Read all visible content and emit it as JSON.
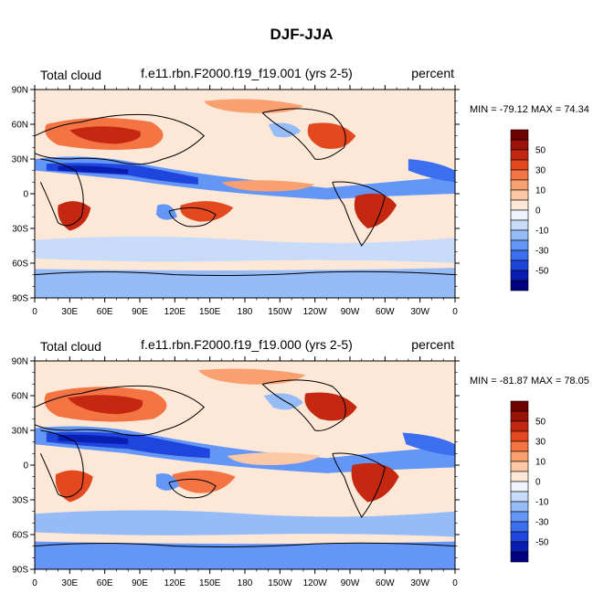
{
  "figure": {
    "title": "DJF-JJA"
  },
  "chart_data": [
    {
      "type": "heatmap",
      "left_title": "Total cloud",
      "center_title": "f.e11.rbn.F2000.f19_f19.001 (yrs 2-5)",
      "right_title": "percent",
      "stats": "MIN = -79.12 MAX =  74.34",
      "x_ticks": [
        "0",
        "30E",
        "60E",
        "90E",
        "120E",
        "150E",
        "180",
        "150W",
        "120W",
        "90W",
        "60W",
        "30W",
        "0"
      ],
      "y_ticks": [
        "90N",
        "60N",
        "30N",
        "0",
        "30S",
        "60S",
        "90S"
      ],
      "x_range": [
        0,
        360
      ],
      "y_range": [
        -90,
        90
      ],
      "colorbar_labels": [
        "50",
        "30",
        "10",
        "0",
        "-10",
        "-30",
        "-50"
      ],
      "contour_levels": [
        -60,
        -50,
        -40,
        -30,
        -20,
        -10,
        -5,
        0,
        5,
        10,
        20,
        30,
        40,
        50,
        60
      ]
    },
    {
      "type": "heatmap",
      "left_title": "Total cloud",
      "center_title": "f.e11.rbn.F2000.f19_f19.000 (yrs 2-5)",
      "right_title": "percent",
      "stats": "MIN = -81.87 MAX =  78.05",
      "x_ticks": [
        "0",
        "30E",
        "60E",
        "90E",
        "120E",
        "150E",
        "180",
        "150W",
        "120W",
        "90W",
        "60W",
        "30W",
        "0"
      ],
      "y_ticks": [
        "90N",
        "60N",
        "30N",
        "0",
        "30S",
        "60S",
        "90S"
      ],
      "x_range": [
        0,
        360
      ],
      "y_range": [
        -90,
        90
      ],
      "colorbar_labels": [
        "50",
        "30",
        "10",
        "0",
        "-10",
        "-30",
        "-50"
      ],
      "contour_levels": [
        -60,
        -50,
        -40,
        -30,
        -20,
        -10,
        -5,
        0,
        5,
        10,
        20,
        30,
        40,
        50,
        60
      ]
    }
  ],
  "colors": [
    "#000080",
    "#0a1eb4",
    "#1e46dc",
    "#3c6ef0",
    "#6496f8",
    "#96bcf8",
    "#c8dcfa",
    "#eef4fc",
    "#fde8d8",
    "#fcc8a6",
    "#f9a070",
    "#f47444",
    "#e4481e",
    "#c42810",
    "#9a1208",
    "#6e0000"
  ]
}
